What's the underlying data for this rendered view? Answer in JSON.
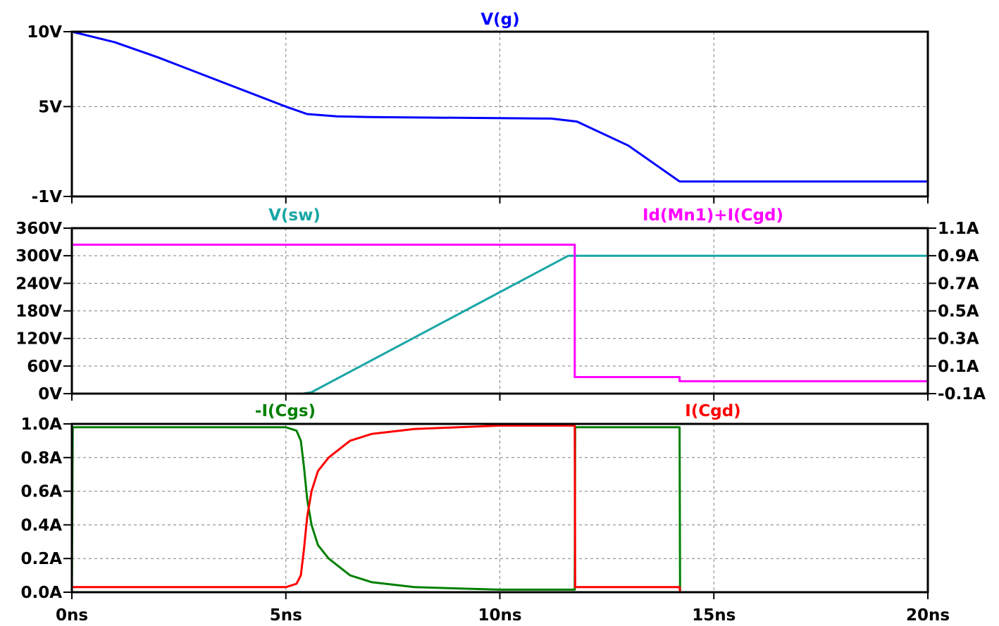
{
  "chart_data": [
    {
      "type": "line",
      "pane": "top",
      "title": "",
      "xlim": [
        0,
        20
      ],
      "x_ticks": [
        "0ns",
        "5ns",
        "10ns",
        "15ns",
        "20ns"
      ],
      "left_axis": {
        "ylim": [
          -1,
          10
        ],
        "ticks": [
          {
            "v": 10,
            "label": "10V"
          },
          {
            "v": 5,
            "label": "5V"
          },
          {
            "v": -1,
            "label": "-1V"
          }
        ]
      },
      "series": [
        {
          "name": "V(g)",
          "color": "#0000ff",
          "axis": "left",
          "points": [
            [
              0,
              10
            ],
            [
              1,
              9.3
            ],
            [
              2,
              8.3
            ],
            [
              3,
              7.2
            ],
            [
              4,
              6.1
            ],
            [
              5,
              5.0
            ],
            [
              5.5,
              4.5
            ],
            [
              6.2,
              4.35
            ],
            [
              7,
              4.3
            ],
            [
              9,
              4.25
            ],
            [
              11.2,
              4.2
            ],
            [
              11.8,
              4.0
            ],
            [
              13,
              2.4
            ],
            [
              14.2,
              0
            ],
            [
              20,
              0
            ]
          ]
        }
      ]
    },
    {
      "type": "line",
      "pane": "middle",
      "title": "",
      "xlim": [
        0,
        20
      ],
      "x_ticks": [
        "0ns",
        "5ns",
        "10ns",
        "15ns",
        "20ns"
      ],
      "left_axis": {
        "ylim": [
          0,
          360
        ],
        "ticks": [
          {
            "v": 360,
            "label": "360V"
          },
          {
            "v": 300,
            "label": "300V"
          },
          {
            "v": 240,
            "label": "240V"
          },
          {
            "v": 180,
            "label": "180V"
          },
          {
            "v": 120,
            "label": "120V"
          },
          {
            "v": 60,
            "label": "60V"
          },
          {
            "v": 0,
            "label": "0V"
          }
        ]
      },
      "right_axis": {
        "ylim": [
          -0.1,
          1.1
        ],
        "ticks": [
          {
            "v": 1.1,
            "label": "1.1A"
          },
          {
            "v": 0.9,
            "label": "0.9A"
          },
          {
            "v": 0.7,
            "label": "0.7A"
          },
          {
            "v": 0.5,
            "label": "0.5A"
          },
          {
            "v": 0.3,
            "label": "0.3A"
          },
          {
            "v": 0.1,
            "label": "0.1A"
          },
          {
            "v": -0.1,
            "label": "-0.1A"
          }
        ]
      },
      "series": [
        {
          "name": "V(sw)",
          "color": "#1aa6a6",
          "axis": "left",
          "points": [
            [
              0,
              0
            ],
            [
              5.4,
              0
            ],
            [
              5.6,
              3
            ],
            [
              11.6,
              300
            ],
            [
              11.75,
              300
            ],
            [
              20,
              300
            ]
          ]
        },
        {
          "name": "Id(Mn1)+I(Cgd)",
          "color": "#ff00ff",
          "axis": "right",
          "points": [
            [
              0,
              0.98
            ],
            [
              11.75,
              0.98
            ],
            [
              11.75,
              0.02
            ],
            [
              14.2,
              0.02
            ],
            [
              14.2,
              -0.01
            ],
            [
              20,
              -0.01
            ]
          ]
        }
      ]
    },
    {
      "type": "line",
      "pane": "bottom",
      "title": "",
      "xlim": [
        0,
        20
      ],
      "x_ticks": [
        "0ns",
        "5ns",
        "10ns",
        "15ns",
        "20ns"
      ],
      "left_axis": {
        "ylim": [
          0,
          1.0
        ],
        "ticks": [
          {
            "v": 1.0,
            "label": "1.0A"
          },
          {
            "v": 0.8,
            "label": "0.8A"
          },
          {
            "v": 0.6,
            "label": "0.6A"
          },
          {
            "v": 0.4,
            "label": "0.4A"
          },
          {
            "v": 0.2,
            "label": "0.2A"
          },
          {
            "v": 0.0,
            "label": "0.0A"
          }
        ]
      },
      "series": [
        {
          "name": "-I(Cgs)",
          "color": "#008000",
          "axis": "left",
          "points": [
            [
              0,
              0
            ],
            [
              0.02,
              0.98
            ],
            [
              5.0,
              0.98
            ],
            [
              5.25,
              0.96
            ],
            [
              5.35,
              0.9
            ],
            [
              5.42,
              0.75
            ],
            [
              5.5,
              0.55
            ],
            [
              5.6,
              0.4
            ],
            [
              5.75,
              0.28
            ],
            [
              6.0,
              0.2
            ],
            [
              6.5,
              0.1
            ],
            [
              7.0,
              0.06
            ],
            [
              8.0,
              0.03
            ],
            [
              10.0,
              0.015
            ],
            [
              11.75,
              0.015
            ],
            [
              11.76,
              0.98
            ],
            [
              14.2,
              0.98
            ],
            [
              14.21,
              0.0
            ],
            [
              20,
              0.0
            ]
          ]
        },
        {
          "name": "I(Cgd)",
          "color": "#ff0000",
          "axis": "left",
          "points": [
            [
              0,
              0.03
            ],
            [
              5.0,
              0.03
            ],
            [
              5.25,
              0.05
            ],
            [
              5.35,
              0.1
            ],
            [
              5.42,
              0.25
            ],
            [
              5.5,
              0.45
            ],
            [
              5.6,
              0.6
            ],
            [
              5.75,
              0.72
            ],
            [
              6.0,
              0.8
            ],
            [
              6.5,
              0.9
            ],
            [
              7.0,
              0.94
            ],
            [
              8.0,
              0.97
            ],
            [
              10.0,
              0.99
            ],
            [
              11.75,
              0.99
            ],
            [
              11.76,
              0.03
            ],
            [
              14.2,
              0.03
            ],
            [
              14.21,
              0.0
            ],
            [
              20,
              0.0
            ]
          ]
        }
      ]
    }
  ]
}
